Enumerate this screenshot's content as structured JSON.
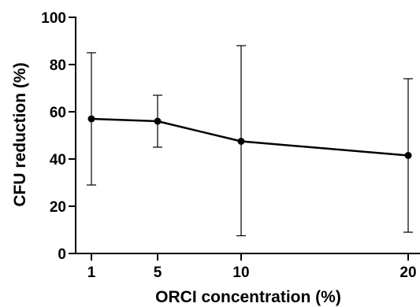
{
  "chart_data": {
    "type": "line",
    "title": "",
    "xlabel": "ORCI concentration (%)",
    "ylabel": "CFU reduction (%)",
    "x_scale": "categorical",
    "categories": [
      "1",
      "5",
      "10",
      "20"
    ],
    "ylim": [
      0,
      100
    ],
    "yticks": [
      "0",
      "20",
      "40",
      "60",
      "80",
      "100"
    ],
    "grid": false,
    "legend": "none",
    "series": [
      {
        "values": [
          57,
          56,
          47.5,
          41.5
        ],
        "error_upper": [
          85,
          67,
          88,
          74
        ],
        "error_lower": [
          29,
          45,
          7.5,
          9
        ],
        "color": "#000000",
        "marker": "filled-circle"
      }
    ]
  }
}
